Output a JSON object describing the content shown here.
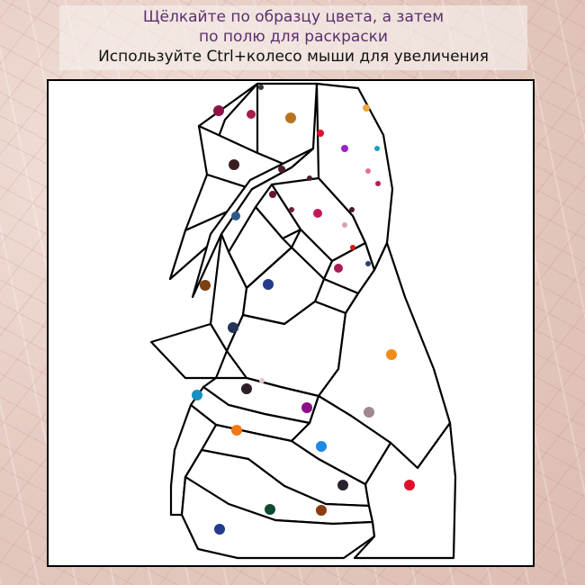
{
  "instructions": {
    "line1": "Щёлкайте по образцу цвета, а затем",
    "line2": "по полю для раскраски",
    "line3": "Используйте Ctrl+колесо мыши для увеличения"
  },
  "palette_outside": [
    {
      "name": "rose-red",
      "color": "#d45b63"
    },
    {
      "name": "gold",
      "color": "#f0c96a"
    }
  ],
  "swatches": [
    {
      "color": "#333333"
    },
    {
      "color": "#8e1448"
    },
    {
      "color": "#a41e4a"
    },
    {
      "color": "#b8751c"
    },
    {
      "color": "#e9a93b"
    },
    {
      "color": "#e0102a"
    },
    {
      "color": "#a020c8"
    },
    {
      "color": "#20a0c0"
    },
    {
      "color": "#3a1f20"
    },
    {
      "color": "#4a1f2e"
    },
    {
      "color": "#e36f9a"
    },
    {
      "color": "#4b1e2e"
    },
    {
      "color": "#b81e5a"
    },
    {
      "color": "#6a1530"
    },
    {
      "color": "#6e1c3a"
    },
    {
      "color": "#c2185b"
    },
    {
      "color": "#4a1530"
    },
    {
      "color": "#2b5a8a"
    },
    {
      "color": "#d4a0b4"
    },
    {
      "color": "#d51818"
    },
    {
      "color": "#a81d52"
    },
    {
      "color": "#2e4066"
    },
    {
      "color": "#7b3f12"
    },
    {
      "color": "#243a8a"
    },
    {
      "color": "#243455"
    },
    {
      "color": "#f28c18"
    },
    {
      "color": "#1890c0"
    },
    {
      "color": "#2b1e2a"
    },
    {
      "color": "#e8c4cc"
    },
    {
      "color": "#8b0f8b"
    },
    {
      "color": "#a08890"
    },
    {
      "color": "#f07818"
    },
    {
      "color": "#1e88e5"
    },
    {
      "color": "#2b2030"
    },
    {
      "color": "#e0102a"
    },
    {
      "color": "#0f4a30"
    },
    {
      "color": "#8a3c10"
    },
    {
      "color": "#243a8a"
    }
  ]
}
